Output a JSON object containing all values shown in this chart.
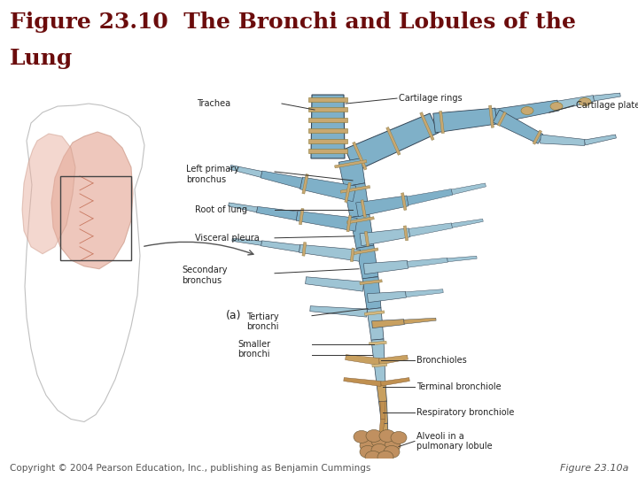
{
  "title_line1": "Figure 23.10  The Bronchi and Lobules of the",
  "title_line2": "Lung",
  "title_color": "#6B0C0C",
  "title_fontsize": 18,
  "title_weight": "bold",
  "copyright_text": "Copyright © 2004 Pearson Education, Inc., publishing as Benjamin Cummings",
  "figure_label": "Figure 23.10a",
  "bg_color": "#ffffff",
  "separator_color": "#bbbbbb",
  "trachea_blue": "#7fb0c8",
  "bronchi_blue": "#9ec4d4",
  "cartilage_tan": "#c8a870",
  "soft_tan": "#d4b880",
  "small_bronchi_tan": "#c8a060",
  "bronchiole_tan": "#c09050",
  "alveoli_tan": "#c09060",
  "lung_pink": "#e8b0a0",
  "body_gray": "#c0c0c0",
  "label_color": "#222222",
  "label_fontsize": 7,
  "line_color": "#333333"
}
